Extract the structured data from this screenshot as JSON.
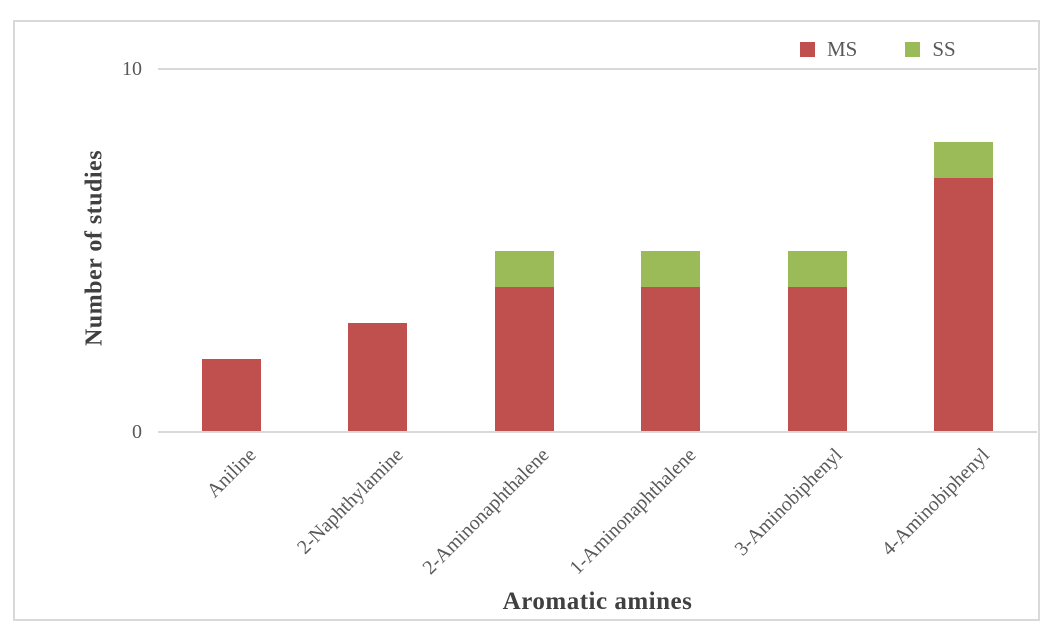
{
  "chart_data": {
    "type": "bar",
    "stacked": true,
    "title": "",
    "xlabel": "Aromatic amines",
    "ylabel": "Number of studies",
    "categories": [
      "Aniline",
      "2-Naphthylamine",
      "2-Aminonaphthalene",
      "1-Aminonaphthalene",
      "3-Aminobiphenyl",
      "4-Aminobiphenyl"
    ],
    "series": [
      {
        "name": "MS",
        "color": "#C0504D",
        "values": [
          2,
          3,
          4,
          4,
          4,
          7
        ]
      },
      {
        "name": "SS",
        "color": "#9BBB59",
        "values": [
          0,
          0,
          1,
          1,
          1,
          1
        ]
      }
    ],
    "totals": [
      2,
      3,
      5,
      5,
      5,
      8
    ],
    "ylim": [
      0,
      10
    ],
    "yticks": [
      0,
      10
    ],
    "grid": "horizontal",
    "legend_position": "top-right",
    "colors": {
      "ms": "#C0504D",
      "ss": "#9BBB59",
      "grid_and_border": "#D9D9D9",
      "tick_text": "#595959",
      "axis_title_text": "#404040"
    }
  }
}
